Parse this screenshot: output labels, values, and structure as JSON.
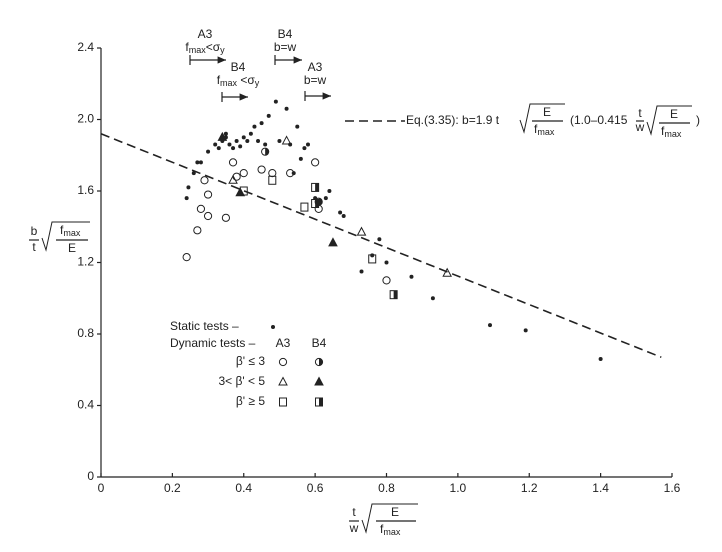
{
  "chart_data": {
    "type": "scatter",
    "xlim": [
      0,
      1.6
    ],
    "ylim": [
      0,
      2.4
    ],
    "xticks": [
      0,
      0.2,
      0.4,
      0.6,
      0.8,
      {
        "value": 1.0,
        "label": "1.0"
      },
      1.2,
      1.4,
      1.6
    ],
    "yticks": [
      0,
      0.4,
      0.8,
      1.2,
      1.6,
      {
        "value": 2.0,
        "label": "2.0"
      },
      2.4
    ],
    "xlabel": {
      "numerator": "t",
      "denominator": "w",
      "root_numerator": "E",
      "root_denominator": "f",
      "root_denominator_sub": "max"
    },
    "ylabel": {
      "numerator": "b",
      "denominator": "t",
      "root_numerator": "f",
      "root_numerator_sub": "max",
      "root_denominator": "E"
    },
    "series": [
      {
        "marker": "dot",
        "color": "#222",
        "x": [
          0.24,
          0.245,
          0.26,
          0.27,
          0.28,
          0.3,
          0.32,
          0.34,
          0.35,
          0.36,
          0.37,
          0.38,
          0.39,
          0.4,
          0.41,
          0.42,
          0.43,
          0.44,
          0.45,
          0.46,
          0.47,
          0.49,
          0.5,
          0.52,
          0.53,
          0.55,
          0.56,
          0.57,
          0.58,
          0.6,
          0.63,
          0.64,
          0.67,
          0.68,
          0.73,
          0.76,
          0.78,
          0.8,
          0.87,
          0.93,
          1.09,
          1.19,
          1.4,
          0.35,
          0.33,
          0.54
        ],
        "values": [
          1.56,
          1.62,
          1.7,
          1.76,
          1.76,
          1.82,
          1.86,
          1.88,
          1.9,
          1.86,
          1.84,
          1.88,
          1.85,
          1.9,
          1.88,
          1.92,
          1.96,
          1.88,
          1.98,
          1.86,
          2.02,
          2.1,
          1.88,
          2.06,
          1.86,
          1.96,
          1.78,
          1.84,
          1.86,
          1.56,
          1.56,
          1.6,
          1.48,
          1.46,
          1.15,
          1.24,
          1.33,
          1.2,
          1.12,
          1.0,
          0.85,
          0.82,
          0.66,
          1.92,
          1.84,
          1.7
        ]
      },
      {
        "marker": "circle",
        "color": "#222",
        "x": [
          0.24,
          0.27,
          0.28,
          0.29,
          0.3,
          0.3,
          0.35,
          0.37,
          0.38,
          0.4,
          0.45,
          0.48,
          0.53,
          0.6,
          0.61,
          0.8
        ],
        "values": [
          1.23,
          1.38,
          1.5,
          1.66,
          1.46,
          1.58,
          1.45,
          1.76,
          1.68,
          1.7,
          1.72,
          1.7,
          1.7,
          1.76,
          1.5,
          1.1
        ]
      },
      {
        "marker": "half-circle",
        "color": "#222",
        "x": [
          0.46,
          0.61
        ],
        "values": [
          1.82,
          1.54
        ]
      },
      {
        "marker": "triangle",
        "color": "#222",
        "x": [
          0.37,
          0.52,
          0.73,
          0.97
        ],
        "values": [
          1.66,
          1.88,
          1.37,
          1.14
        ]
      },
      {
        "marker": "filled-triangle",
        "color": "#222",
        "x": [
          0.34,
          0.39,
          0.65
        ],
        "values": [
          1.9,
          1.59,
          1.31
        ]
      },
      {
        "marker": "square",
        "color": "#222",
        "x": [
          0.4,
          0.48,
          0.57,
          0.76
        ],
        "values": [
          1.6,
          1.66,
          1.51,
          1.22
        ]
      },
      {
        "marker": "half-square",
        "color": "#222",
        "x": [
          0.6,
          0.6,
          0.82
        ],
        "values": [
          1.62,
          1.53,
          1.02
        ]
      }
    ],
    "fit_line": {
      "x": [
        0,
        1.57
      ],
      "values": [
        1.92,
        0.67
      ],
      "color": "#222"
    },
    "equation": {
      "prefix": "Eq.(3.35):  b=1.9 t",
      "root_numerator": "E",
      "root_denominator": "f",
      "root_denominator_sub": "max",
      "mid": "(1.0–0.415",
      "frac_numerator": "t",
      "frac_denominator": "w",
      "end": ")"
    },
    "legend": {
      "static": "Static tests –",
      "dynamic": "Dynamic tests –",
      "columns": [
        "A3",
        "B4"
      ],
      "rows": [
        "β' ≤ 3",
        "3< β' < 5",
        "β' ≥ 5"
      ]
    },
    "annotations": [
      {
        "label": "A3",
        "condition": "f",
        "sub": "max",
        "rest": "<σ",
        "rest_sub": "y"
      },
      {
        "label": "B4",
        "condition": "b=w"
      },
      {
        "label": "B4",
        "condition": "f",
        "sub": "max",
        "rest": " <σ",
        "rest_sub": "y"
      },
      {
        "label": "A3",
        "condition": "b=w"
      }
    ]
  }
}
